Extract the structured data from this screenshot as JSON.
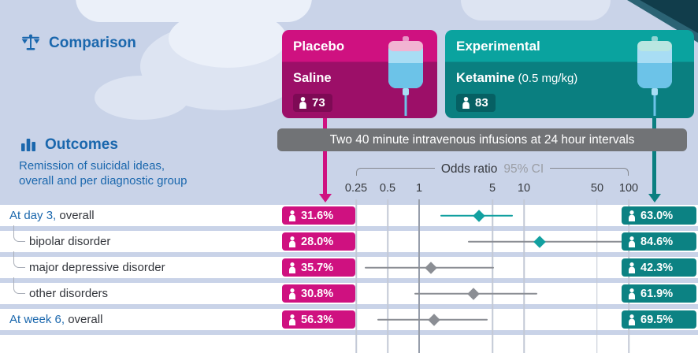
{
  "header": {
    "comparison_label": "Comparison",
    "placebo": {
      "title": "Placebo",
      "subtitle": "Saline",
      "n": "73"
    },
    "experimental": {
      "title": "Experimental",
      "drug": "Ketamine",
      "dose": " (0.5 mg/kg)",
      "n": "83"
    },
    "infusion_note": "Two 40 minute intravenous infusions at 24 hour intervals"
  },
  "outcomes": {
    "label": "Outcomes",
    "subtitle_line1": "Remission of suicidal ideas,",
    "subtitle_line2": "overall and per diagnostic group"
  },
  "axis": {
    "title": "Odds ratio",
    "ci_label": "95% CI"
  },
  "chart_data": {
    "type": "forest",
    "scale": "log",
    "xlim": [
      0.25,
      100
    ],
    "ticks": [
      0.25,
      0.5,
      1,
      5,
      10,
      50,
      100
    ],
    "tick_labels": [
      "0.25",
      "0.5",
      "1",
      "5",
      "10",
      "50",
      "100"
    ],
    "reference_line": 1,
    "legend": {
      "placebo_color": "magenta",
      "experimental_color": "teal"
    },
    "rows": [
      {
        "label_blue": "At day 3,",
        "label_rest": " overall",
        "indent": false,
        "placebo_pct": "31.6%",
        "experimental_pct": "63.0%",
        "or": 3.7,
        "ci_low": 1.6,
        "ci_high": 7.9,
        "line": "teal",
        "marker": "teal"
      },
      {
        "label_blue": "",
        "label_rest": "bipolar disorder",
        "indent": true,
        "placebo_pct": "28.0%",
        "experimental_pct": "84.6%",
        "or": 14.1,
        "ci_low": 2.9,
        "ci_high": 92,
        "line": "gray",
        "marker": "teal"
      },
      {
        "label_blue": "",
        "label_rest": "major depressive disorder",
        "indent": true,
        "placebo_pct": "35.7%",
        "experimental_pct": "42.3%",
        "or": 1.3,
        "ci_low": 0.3,
        "ci_high": 5.2,
        "line": "gray",
        "marker": "gray"
      },
      {
        "label_blue": "",
        "label_rest": "other disorders",
        "indent": true,
        "placebo_pct": "30.8%",
        "experimental_pct": "61.9%",
        "or": 3.3,
        "ci_low": 0.9,
        "ci_high": 13.5,
        "line": "gray",
        "marker": "gray"
      },
      {
        "label_blue": "At week 6,",
        "label_rest": " overall",
        "indent": false,
        "placebo_pct": "56.3%",
        "experimental_pct": "69.5%",
        "or": 1.4,
        "ci_low": 0.4,
        "ci_high": 4.5,
        "line": "gray",
        "marker": "gray"
      }
    ]
  },
  "colors": {
    "page_bg": "#c9d3e8",
    "row_bg": "#ffffff",
    "blue": "#1a67ad",
    "text_dark": "#33363c",
    "magenta": "#cf1180",
    "magenta_dark": "#9c0f68",
    "magenta_deep": "#7e0a55",
    "teal": "#0aa39f",
    "teal_dark": "#0a7f80",
    "teal_deep": "#066063",
    "teal_badge": "#0c8283",
    "teal_marker": "#12a0a0",
    "marker_gray": "#8b8e94",
    "gray_banner": "#717376",
    "grid": "#c3c9d6",
    "grid_strong": "#979eab",
    "cloud": "#dde4f2",
    "cloud_light": "#ebf0f9",
    "corner_dark": "#113d4b",
    "corner_light": "#2b6374",
    "bag_body": "#a8ddf4",
    "bag_liquid": "#6cc3e8",
    "cap_pink": "#f2b3d2",
    "cap_teal": "#b9e6e1"
  }
}
